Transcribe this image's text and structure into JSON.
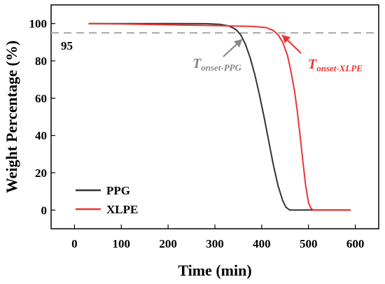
{
  "chart_data": {
    "type": "line",
    "xlabel": "Time (min)",
    "ylabel": "Weight Percentage (%)",
    "xlim": [
      -50,
      650
    ],
    "ylim": [
      -10,
      110
    ],
    "xticks": [
      "0",
      "100",
      "200",
      "300",
      "400",
      "500",
      "600"
    ],
    "yticks": [
      "0",
      "20",
      "40",
      "60",
      "80",
      "100"
    ],
    "grid": false,
    "legend_placement": "bottom-left",
    "reference_line": {
      "y": 95,
      "label": "95",
      "style": "dashed",
      "color": "#aaaaaa"
    },
    "series": [
      {
        "name": "PPG",
        "color": "#333333",
        "points": [
          [
            30,
            100
          ],
          [
            100,
            100
          ],
          [
            200,
            100
          ],
          [
            280,
            99.9
          ],
          [
            310,
            99.6
          ],
          [
            330,
            98.7
          ],
          [
            345,
            96.8
          ],
          [
            355,
            94
          ],
          [
            365,
            89
          ],
          [
            375,
            82
          ],
          [
            385,
            73
          ],
          [
            395,
            62
          ],
          [
            405,
            50
          ],
          [
            415,
            37
          ],
          [
            425,
            24
          ],
          [
            435,
            13
          ],
          [
            445,
            5
          ],
          [
            452,
            1.5
          ],
          [
            460,
            0
          ],
          [
            500,
            0
          ],
          [
            590,
            0
          ]
        ]
      },
      {
        "name": "XLPE",
        "color": "#ee3333",
        "points": [
          [
            30,
            100
          ],
          [
            100,
            99.8
          ],
          [
            200,
            99.3
          ],
          [
            300,
            98.9
          ],
          [
            380,
            98.5
          ],
          [
            410,
            97.8
          ],
          [
            425,
            96.2
          ],
          [
            435,
            94
          ],
          [
            445,
            90
          ],
          [
            455,
            83
          ],
          [
            462,
            75
          ],
          [
            470,
            64
          ],
          [
            476,
            53
          ],
          [
            482,
            40
          ],
          [
            488,
            26
          ],
          [
            494,
            13
          ],
          [
            500,
            4
          ],
          [
            505,
            1
          ],
          [
            510,
            0
          ],
          [
            550,
            0
          ],
          [
            590,
            0
          ]
        ]
      }
    ],
    "annotations": [
      {
        "main": "T",
        "sub": "onset-PPG",
        "color": "#888888"
      },
      {
        "main": "T",
        "sub": "onset-XLPE",
        "color": "#ee3333"
      }
    ]
  }
}
